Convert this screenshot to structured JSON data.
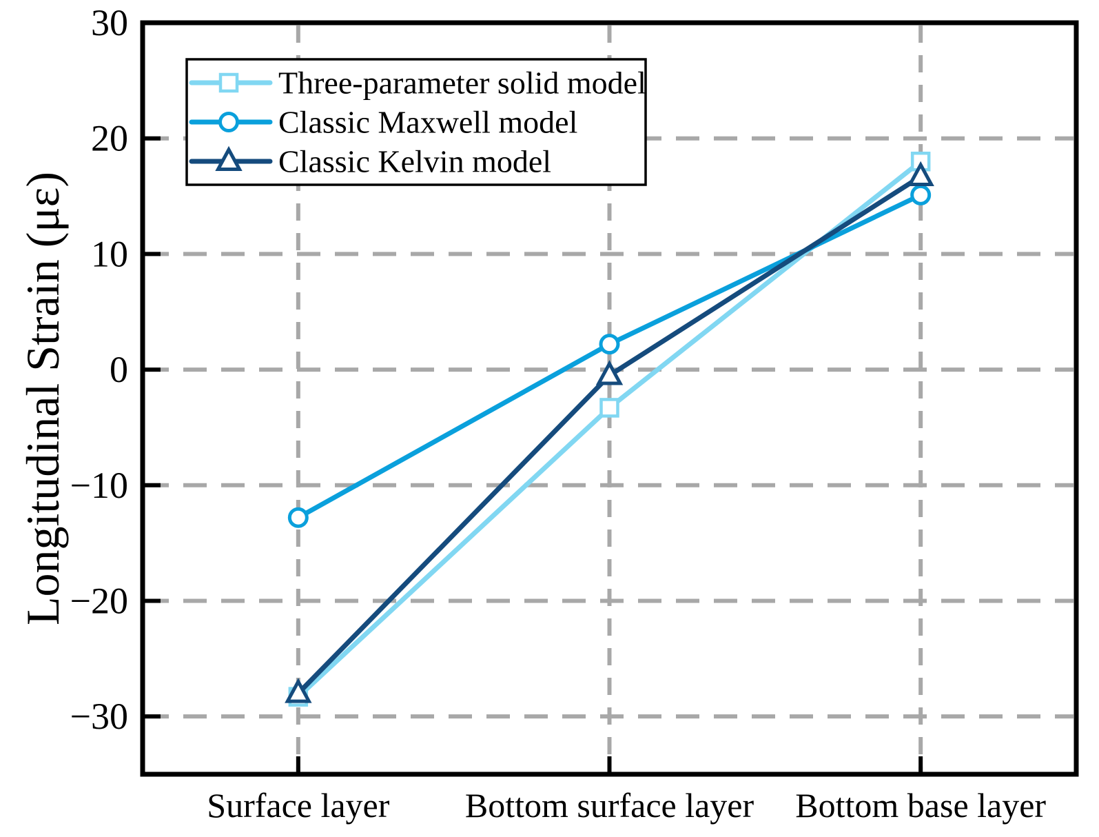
{
  "figure": {
    "background": "#FFFFFF"
  },
  "chart_data": {
    "type": "line",
    "title": "",
    "categories": [
      "Surface layer",
      "Bottom surface layer",
      "Bottom base layer"
    ],
    "series": [
      {
        "name": "Three-parameter solid model",
        "values": [
          -28.3,
          -3.3,
          18.0
        ],
        "color": "#81D7F2",
        "marker": "square"
      },
      {
        "name": "Classic Maxwell model",
        "values": [
          -12.8,
          2.2,
          15.1
        ],
        "color": "#0AA0DC",
        "marker": "circle"
      },
      {
        "name": "Classic Kelvin model",
        "values": [
          -28.0,
          -0.5,
          16.7
        ],
        "color": "#154B7D",
        "marker": "triangle"
      }
    ],
    "xlabel": "",
    "ylabel": "Longitudinal Strain (με)",
    "ylim": [
      -35,
      30
    ],
    "yticks": [
      30,
      20,
      10,
      0,
      -10,
      -20,
      -30
    ],
    "grid": true,
    "grid_color": "#A8A8A8",
    "frame_color": "#000000",
    "marker_fill": "#FFFFFF",
    "legend_position": "upper-left",
    "legend_border_color": "#000000",
    "legend_background": "#FFFFFF"
  }
}
